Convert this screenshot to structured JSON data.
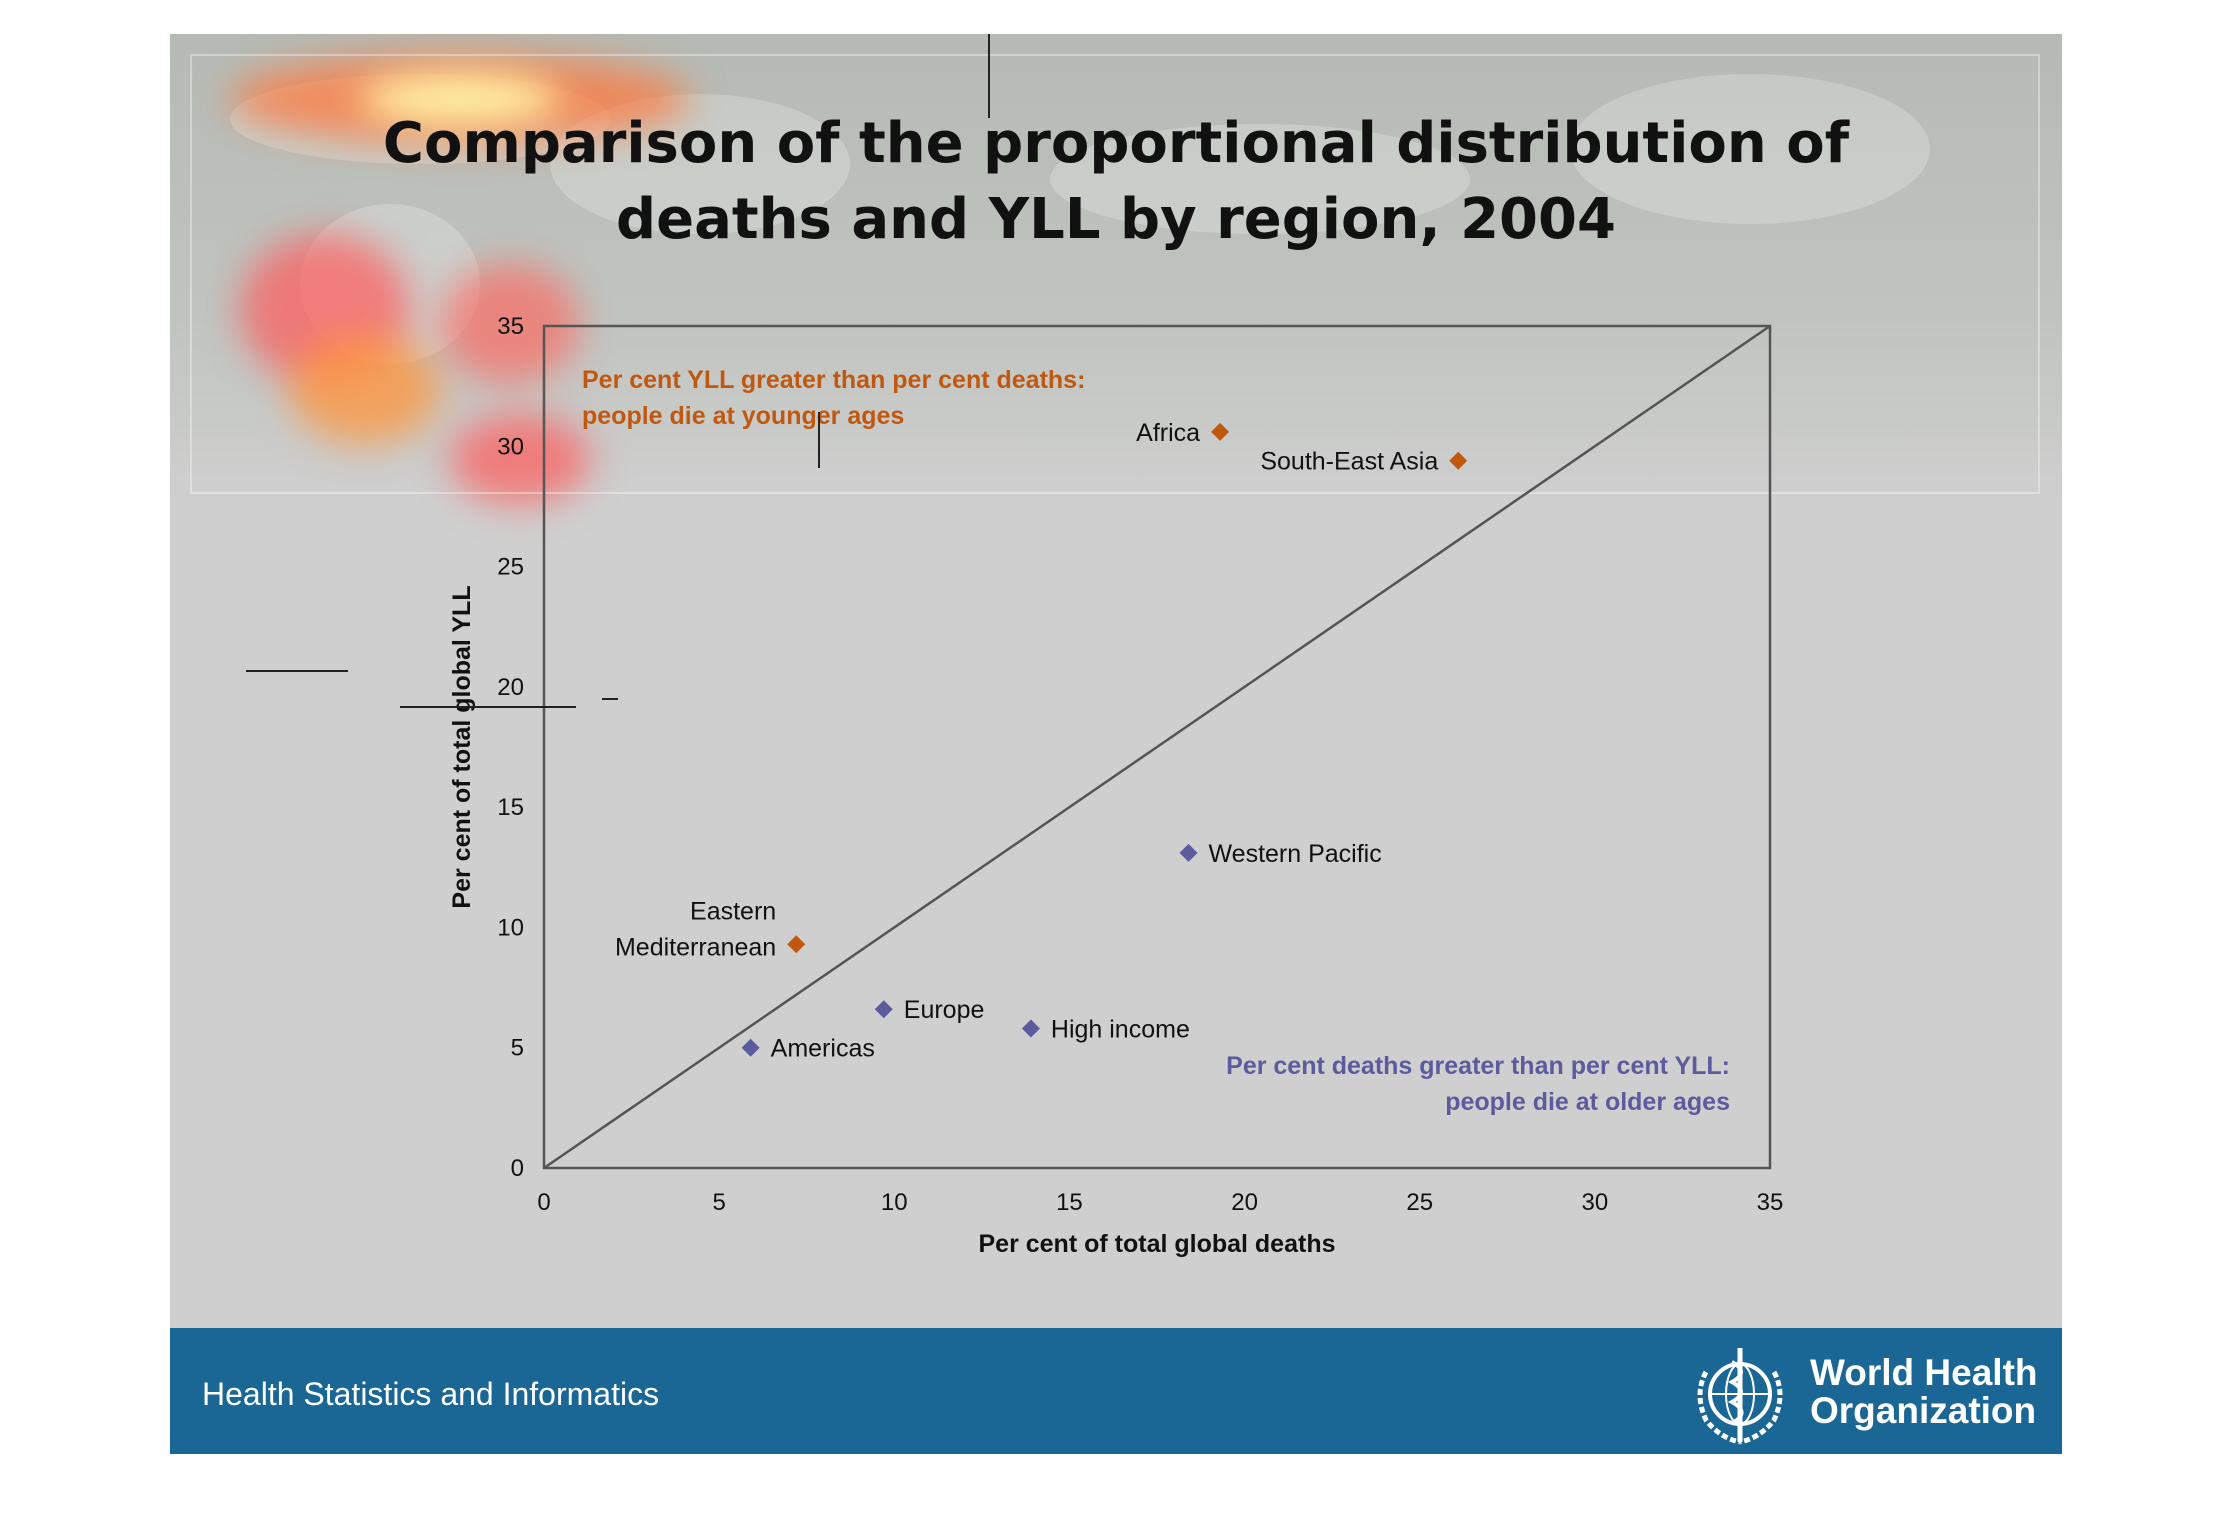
{
  "title": {
    "line1": "Comparison of the proportional distribution of",
    "line2": "deaths and YLL by region, 2004"
  },
  "footer": {
    "left_text": "Health Statistics and Informatics",
    "org_name_line1": "World Health",
    "org_name_line2": "Organization",
    "emblem_icon": "who-emblem-icon"
  },
  "colors": {
    "orange": "#c1580f",
    "purple": "#5b5b9e",
    "footer": "#1a6796"
  },
  "chart_data": {
    "type": "scatter",
    "title": "",
    "xlabel": "Per cent of total global deaths",
    "ylabel": "Per cent of total global YLL",
    "xlim": [
      0,
      35
    ],
    "ylim": [
      0,
      35
    ],
    "xticks": [
      0,
      5,
      10,
      15,
      20,
      25,
      30,
      35
    ],
    "yticks": [
      0,
      5,
      10,
      15,
      20,
      25,
      30,
      35
    ],
    "grid": false,
    "reference_line": {
      "from": [
        0,
        0
      ],
      "to": [
        35,
        35
      ]
    },
    "annotations": [
      {
        "lines": [
          "Per cent YLL greater than per cent deaths:",
          "people die at younger ages"
        ],
        "color": "#c1580f",
        "placement": "top-left"
      },
      {
        "lines": [
          "Per cent deaths greater than per cent YLL:",
          "people die at older ages"
        ],
        "color": "#5b5b9e",
        "placement": "bottom-right"
      }
    ],
    "points": [
      {
        "label": "Africa",
        "x": 19.3,
        "y": 30.6,
        "color": "#c1580f",
        "label_side": "left"
      },
      {
        "label": "South-East Asia",
        "x": 26.1,
        "y": 29.4,
        "color": "#c1580f",
        "label_side": "left"
      },
      {
        "label": "Eastern Mediterranean",
        "label_lines": [
          "Eastern",
          "Mediterranean"
        ],
        "x": 7.2,
        "y": 9.3,
        "color": "#c1580f",
        "label_side": "left"
      },
      {
        "label": "Western Pacific",
        "x": 18.4,
        "y": 13.1,
        "color": "#5b5b9e",
        "label_side": "right"
      },
      {
        "label": "Europe",
        "x": 9.7,
        "y": 6.6,
        "color": "#5b5b9e",
        "label_side": "right"
      },
      {
        "label": "High income",
        "x": 13.9,
        "y": 5.8,
        "color": "#5b5b9e",
        "label_side": "right"
      },
      {
        "label": "Americas",
        "x": 5.9,
        "y": 5.0,
        "color": "#5b5b9e",
        "label_side": "right"
      }
    ]
  }
}
